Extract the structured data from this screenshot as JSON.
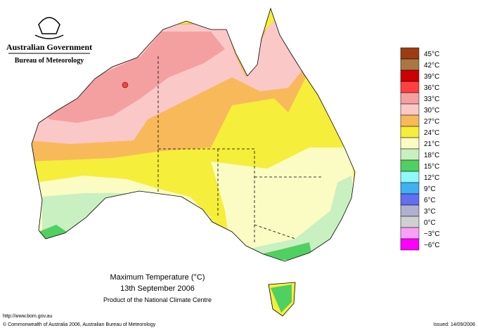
{
  "header": {
    "government": "Australian Government",
    "bureau": "Bureau of Meteorology"
  },
  "map": {
    "title": "Maximum Temperature (°C)",
    "date": "13th September 2006",
    "product": "Product of the National Climate Centre"
  },
  "legend": {
    "items": [
      {
        "label": "45°C",
        "color": "#9b3d10"
      },
      {
        "label": "42°C",
        "color": "#a97842"
      },
      {
        "label": "39°C",
        "color": "#cc0000"
      },
      {
        "label": "36°C",
        "color": "#ff4040"
      },
      {
        "label": "33°C",
        "color": "#f4a0a0"
      },
      {
        "label": "30°C",
        "color": "#fbc8c8"
      },
      {
        "label": "27°C",
        "color": "#f8b95a"
      },
      {
        "label": "24°C",
        "color": "#f5ee3a"
      },
      {
        "label": "21°C",
        "color": "#fbfbc4"
      },
      {
        "label": "18°C",
        "color": "#c8f0c0"
      },
      {
        "label": "15°C",
        "color": "#50d060"
      },
      {
        "label": "12°C",
        "color": "#90f8f8"
      },
      {
        "label": "9°C",
        "color": "#40b0f0"
      },
      {
        "label": "6°C",
        "color": "#6070f0"
      },
      {
        "label": "3°C",
        "color": "#b0b0d0"
      },
      {
        "label": "0°C",
        "color": "#d0d0d0"
      },
      {
        "label": "−3°C",
        "color": "#f8a0f8"
      },
      {
        "label": "−6°C",
        "color": "#ff00ff"
      }
    ]
  },
  "footer": {
    "url": "http://www.bom.gov.au",
    "copyright": "© Commonwealth of Australia 2006, Australian Bureau of Meteorology",
    "issued": "Issued: 14/09/2006"
  }
}
